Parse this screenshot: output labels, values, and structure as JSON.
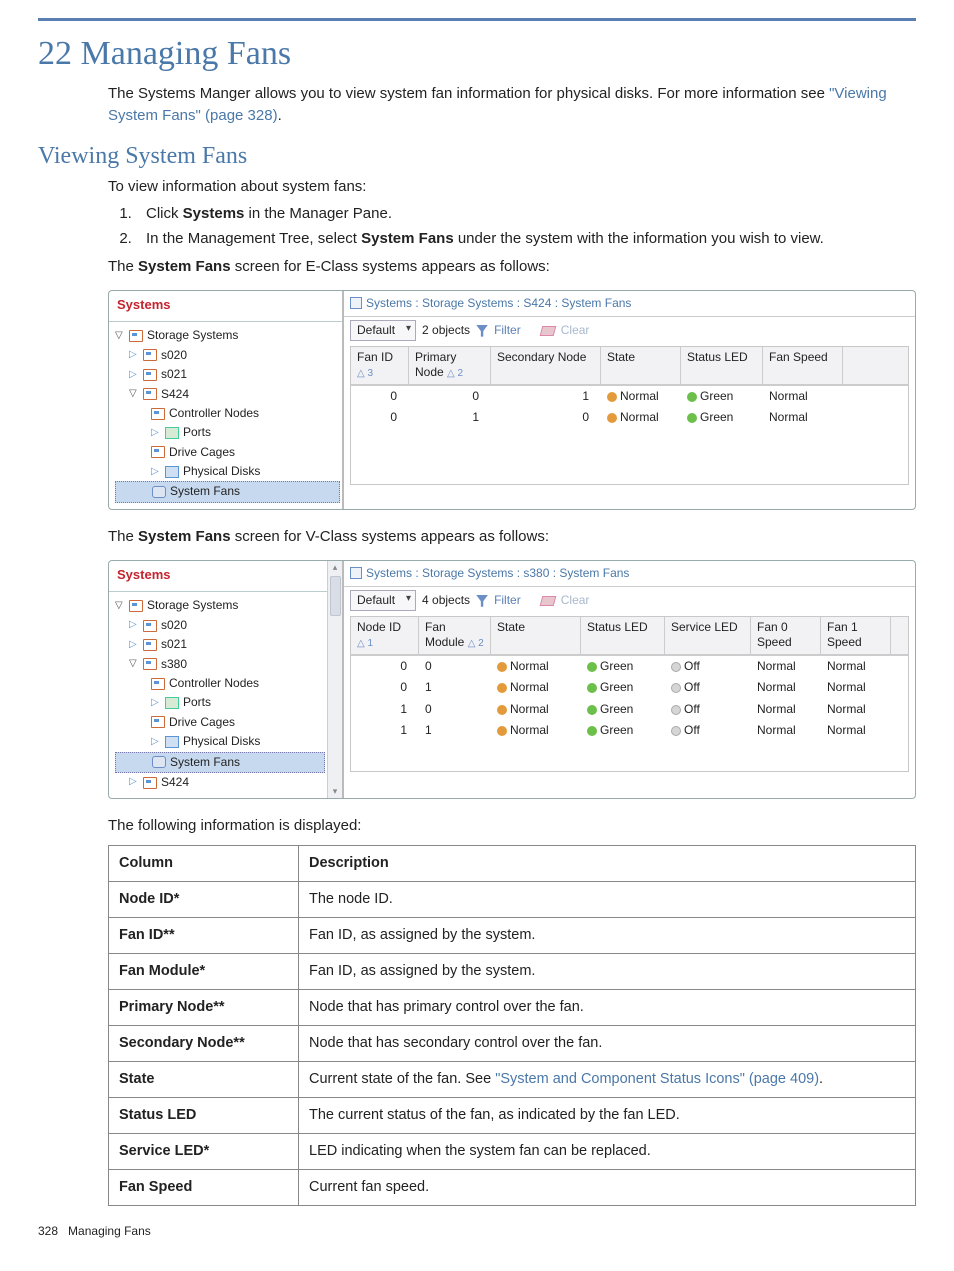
{
  "page": {
    "heading": "22 Managing Fans",
    "intro_pre": "The Systems Manger allows you to view system fan information for physical disks. For more information see ",
    "intro_link": "\"Viewing System Fans\" (page 328)",
    "intro_post": ".",
    "section": "Viewing System Fans",
    "section_lead": "To view information about system fans:",
    "steps": [
      {
        "pre": "Click ",
        "bold": "Systems",
        "post": " in the Manager Pane."
      },
      {
        "pre": "In the Management Tree, select ",
        "bold": "System Fans",
        "post": " under the system with the information you wish to view."
      }
    ],
    "e_intro_pre": "The ",
    "e_intro_bold": "System Fans",
    "e_intro_post": " screen for E-Class systems appears as follows:",
    "v_intro_pre": "The ",
    "v_intro_bold": "System Fans",
    "v_intro_post": " screen for V-Class systems appears as follows:",
    "displayed": "The following information is displayed:"
  },
  "eclass": {
    "left_title": "Systems",
    "tree": {
      "root": "Storage Systems",
      "items": [
        "s020",
        "s021",
        "S424"
      ],
      "children": [
        "Controller Nodes",
        "Ports",
        "Drive Cages",
        "Physical Disks",
        "System Fans"
      ]
    },
    "breadcrumb": "Systems : Storage Systems : S424 : System Fans",
    "toolbar": {
      "dropdown": "Default",
      "objects": "2 objects",
      "filter": "Filter",
      "clear": "Clear"
    },
    "columns": {
      "fan_id": "Fan ID",
      "fan_sort": "△ 3",
      "primary": "Primary Node",
      "primary_sort": "△ 2",
      "secondary": "Secondary Node",
      "state": "State",
      "status": "Status LED",
      "speed": "Fan Speed"
    },
    "rows": [
      {
        "fan": "0",
        "pri": "0",
        "sec": "1",
        "state": "Normal",
        "status": "Green",
        "speed": "Normal"
      },
      {
        "fan": "0",
        "pri": "1",
        "sec": "0",
        "state": "Normal",
        "status": "Green",
        "speed": "Normal"
      }
    ]
  },
  "vclass": {
    "left_title": "Systems",
    "tree": {
      "root": "Storage Systems",
      "items": [
        "s020",
        "s021",
        "s380"
      ],
      "children": [
        "Controller Nodes",
        "Ports",
        "Drive Cages",
        "Physical Disks",
        "System Fans"
      ],
      "extra": "S424"
    },
    "breadcrumb": "Systems : Storage Systems : s380 : System Fans",
    "toolbar": {
      "dropdown": "Default",
      "objects": "4 objects",
      "filter": "Filter",
      "clear": "Clear"
    },
    "columns": {
      "node": "Node ID",
      "node_sort": "△ 1",
      "mod": "Fan Module",
      "mod_sort": "△ 2",
      "state": "State",
      "status": "Status LED",
      "service": "Service LED",
      "f0": "Fan 0 Speed",
      "f1": "Fan 1 Speed"
    },
    "rows": [
      {
        "node": "0",
        "mod": "0",
        "state": "Normal",
        "status": "Green",
        "service": "Off",
        "f0": "Normal",
        "f1": "Normal"
      },
      {
        "node": "0",
        "mod": "1",
        "state": "Normal",
        "status": "Green",
        "service": "Off",
        "f0": "Normal",
        "f1": "Normal"
      },
      {
        "node": "1",
        "mod": "0",
        "state": "Normal",
        "status": "Green",
        "service": "Off",
        "f0": "Normal",
        "f1": "Normal"
      },
      {
        "node": "1",
        "mod": "1",
        "state": "Normal",
        "status": "Green",
        "service": "Off",
        "f0": "Normal",
        "f1": "Normal"
      }
    ]
  },
  "table": {
    "head": {
      "c1": "Column",
      "c2": "Description"
    },
    "rows": [
      {
        "c1": "Node ID*",
        "c2": "The node ID."
      },
      {
        "c1": "Fan ID**",
        "c2": "Fan ID, as assigned by the system."
      },
      {
        "c1": "Fan Module*",
        "c2": "Fan ID, as assigned by the system."
      },
      {
        "c1": "Primary Node**",
        "c2": "Node that has primary control over the fan."
      },
      {
        "c1": "Secondary Node**",
        "c2": "Node that has secondary control over the fan."
      },
      {
        "c1": "State",
        "c2_pre": "Current state of the fan. See ",
        "c2_link": "\"System and Component Status Icons\" (page 409)",
        "c2_post": "."
      },
      {
        "c1": "Status LED",
        "c2": "The current status of the fan, as indicated by the fan LED."
      },
      {
        "c1": "Service LED*",
        "c2": "LED indicating when the system fan can be replaced."
      },
      {
        "c1": "Fan Speed",
        "c2": "Current fan speed."
      }
    ]
  },
  "footer": {
    "page": "328",
    "label": "Managing Fans"
  },
  "colors": {
    "accent": "#4a78a8",
    "red": "#c3252e",
    "orange_dot": "#e39a3a",
    "green_dot": "#6bbf4a",
    "grey_dot": "#d5d5d5"
  }
}
